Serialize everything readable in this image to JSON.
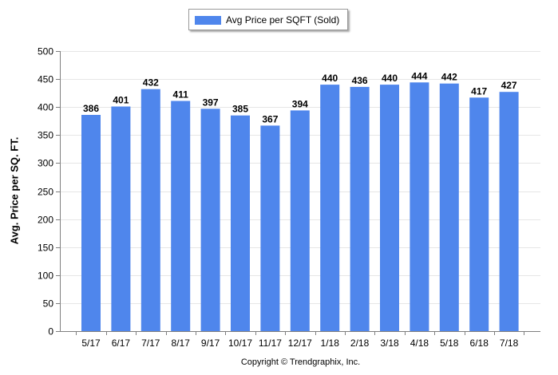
{
  "legend": {
    "label": "Avg Price per SQFT (Sold)"
  },
  "footer": {
    "copyright": "Copyright © Trendgraphix, Inc."
  },
  "colors": {
    "bar": "#4f86ec",
    "grid": "#e6e6e6",
    "axis": "#7f7f7f",
    "background": "#ffffff"
  },
  "chart_data": {
    "type": "bar",
    "title": "",
    "xlabel": "",
    "ylabel": "Avg. Price per SQ. FT.",
    "categories": [
      "5/17",
      "6/17",
      "7/17",
      "8/17",
      "9/17",
      "10/17",
      "11/17",
      "12/17",
      "1/18",
      "2/18",
      "3/18",
      "4/18",
      "5/18",
      "6/18",
      "7/18"
    ],
    "series": [
      {
        "name": "Avg Price per SQFT (Sold)",
        "values": [
          386,
          401,
          432,
          411,
          397,
          385,
          367,
          394,
          440,
          436,
          440,
          444,
          442,
          417,
          427
        ]
      }
    ],
    "ylim": [
      0,
      500
    ],
    "yticks": [
      0,
      50,
      100,
      150,
      200,
      250,
      300,
      350,
      400,
      450,
      500
    ],
    "grid": "horizontal",
    "legend_position": "top-center",
    "data_labels": true
  }
}
